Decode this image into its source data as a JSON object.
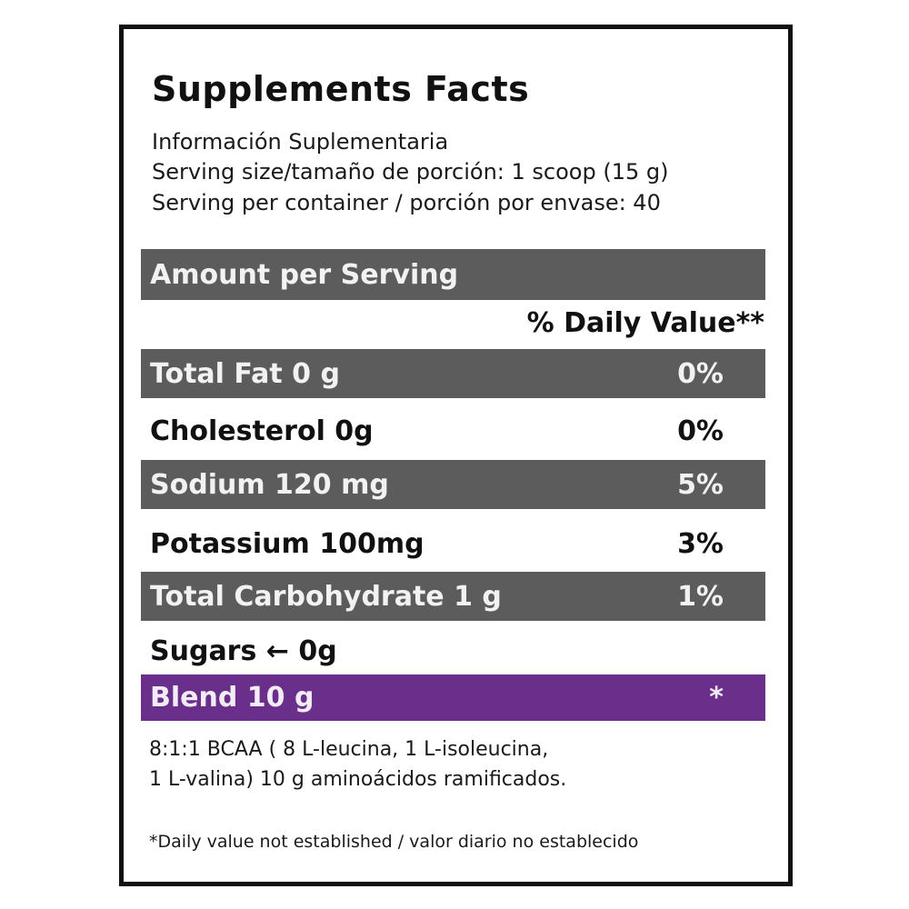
{
  "title": "Supplements Facts",
  "subtitle": "Información Suplementaria",
  "serving_size": "Serving size/tamaño de porción: 1 scoop (15 g)",
  "servings_per_container": "Serving per container / porción por envase: 40",
  "amount_header": "Amount per Serving",
  "daily_value_header": "% Daily Value**",
  "rows": [
    {
      "label": "Total Fat 0 g",
      "pct": "0%"
    },
    {
      "label": "Cholesterol  0g",
      "pct": "0%"
    },
    {
      "label": "Sodium  120 mg",
      "pct": "5%"
    },
    {
      "label": "Potassium  100mg",
      "pct": "3%"
    },
    {
      "label": "Total Carbohydrate 1 g",
      "pct": "1%"
    },
    {
      "label": "Sugars ← 0g",
      "pct": ""
    },
    {
      "label": "Blend   10 g",
      "pct": "*"
    }
  ],
  "blend_note_line1": "8:1:1 BCAA ( 8 L-leucina, 1 L-isoleucina,",
  "blend_note_line2": "1 L-valina) 10 g aminoácidos ramificados.",
  "footnote": "*Daily value not established / valor diario no establecido",
  "colors": {
    "bar_gray": "#5c5c5c",
    "bar_purple": "#6a2f8a",
    "border": "#111111"
  }
}
